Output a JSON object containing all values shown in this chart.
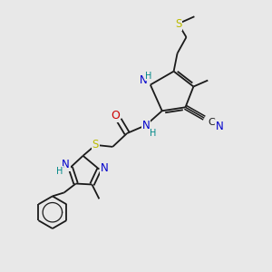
{
  "background_color": "#e8e8e8",
  "figsize": [
    3.0,
    3.0
  ],
  "dpi": 100,
  "bond_color": "#1a1a1a",
  "bond_lw": 1.3,
  "atom_bg": "#e8e8e8",
  "colors": {
    "C": "#1a1a1a",
    "N": "#0000cc",
    "O": "#cc0000",
    "S": "#bbbb00",
    "H": "#008888"
  }
}
